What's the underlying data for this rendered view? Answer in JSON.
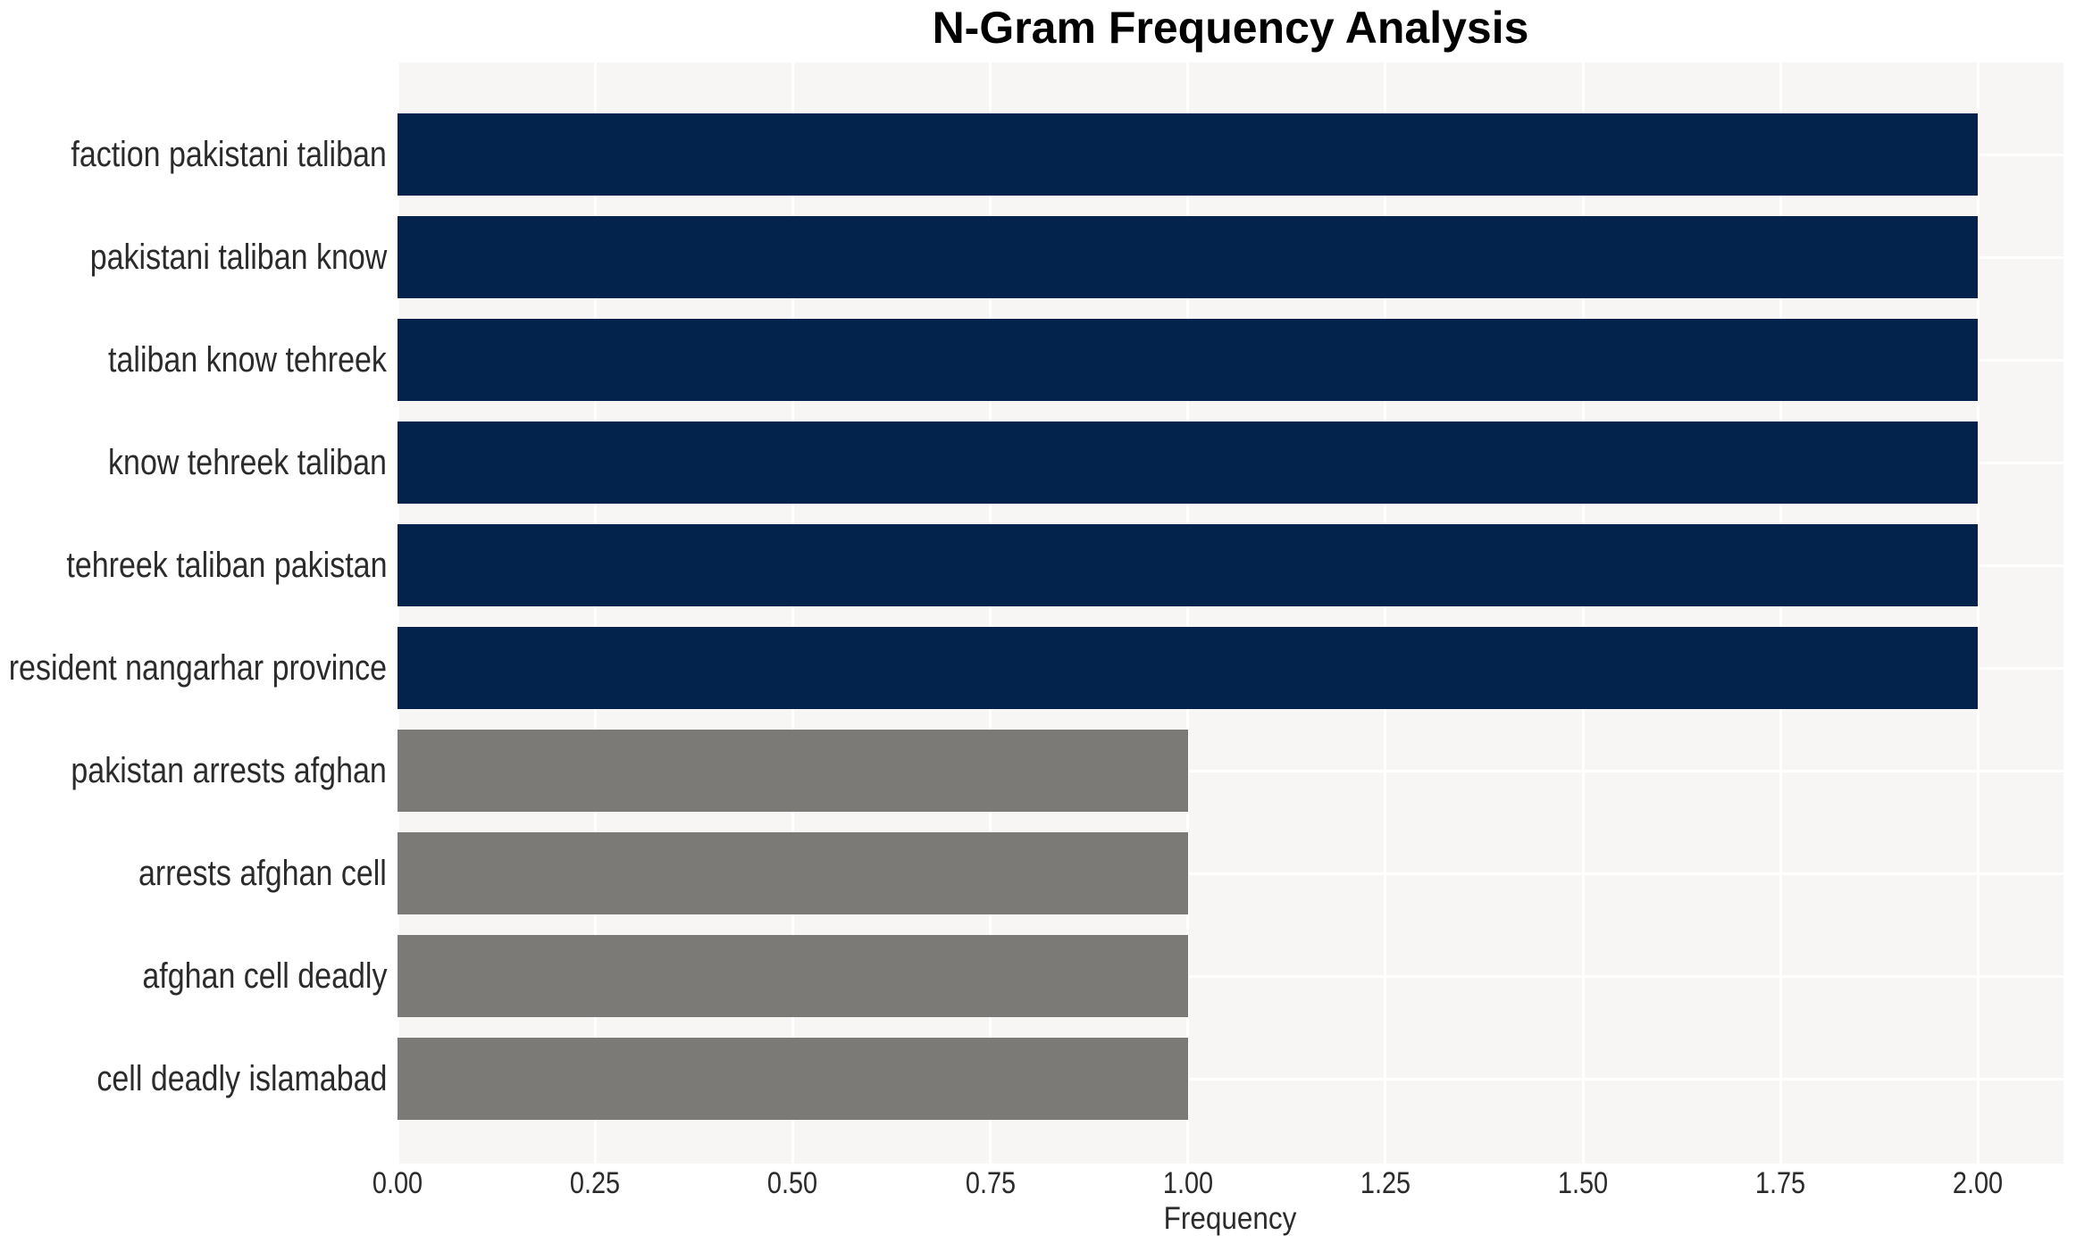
{
  "chart_data": {
    "type": "bar",
    "orientation": "horizontal",
    "title": "N-Gram Frequency Analysis",
    "xlabel": "Frequency",
    "ylabel": "",
    "categories": [
      "faction pakistani taliban",
      "pakistani taliban know",
      "taliban know tehreek",
      "know tehreek taliban",
      "tehreek taliban pakistan",
      "resident nangarhar province",
      "pakistan arrests afghan",
      "arrests afghan cell",
      "afghan cell deadly",
      "cell deadly islamabad"
    ],
    "values": [
      2,
      2,
      2,
      2,
      2,
      2,
      1,
      1,
      1,
      1
    ],
    "bar_colors": [
      "#03234d",
      "#03234d",
      "#03234d",
      "#03234d",
      "#03234d",
      "#03234d",
      "#7b7a76",
      "#7b7a76",
      "#7b7a76",
      "#7b7a76"
    ],
    "xlim": [
      0,
      2.108
    ],
    "xticks": [
      {
        "label": "0.00",
        "value": 0.0
      },
      {
        "label": "0.25",
        "value": 0.25
      },
      {
        "label": "0.50",
        "value": 0.5
      },
      {
        "label": "0.75",
        "value": 0.75
      },
      {
        "label": "1.00",
        "value": 1.0
      },
      {
        "label": "1.25",
        "value": 1.25
      },
      {
        "label": "1.50",
        "value": 1.5
      },
      {
        "label": "1.75",
        "value": 1.75
      },
      {
        "label": "2.00",
        "value": 2.0
      }
    ],
    "grid": true,
    "legend": false,
    "colors": {
      "primary_bar": "#03234d",
      "secondary_bar": "#7b7a76",
      "plot_background": "#f7f6f5",
      "gridline": "#ffffff",
      "page_background": "#ffffff",
      "axis_text": "#2b2b2b",
      "title_text": "#000000"
    }
  }
}
